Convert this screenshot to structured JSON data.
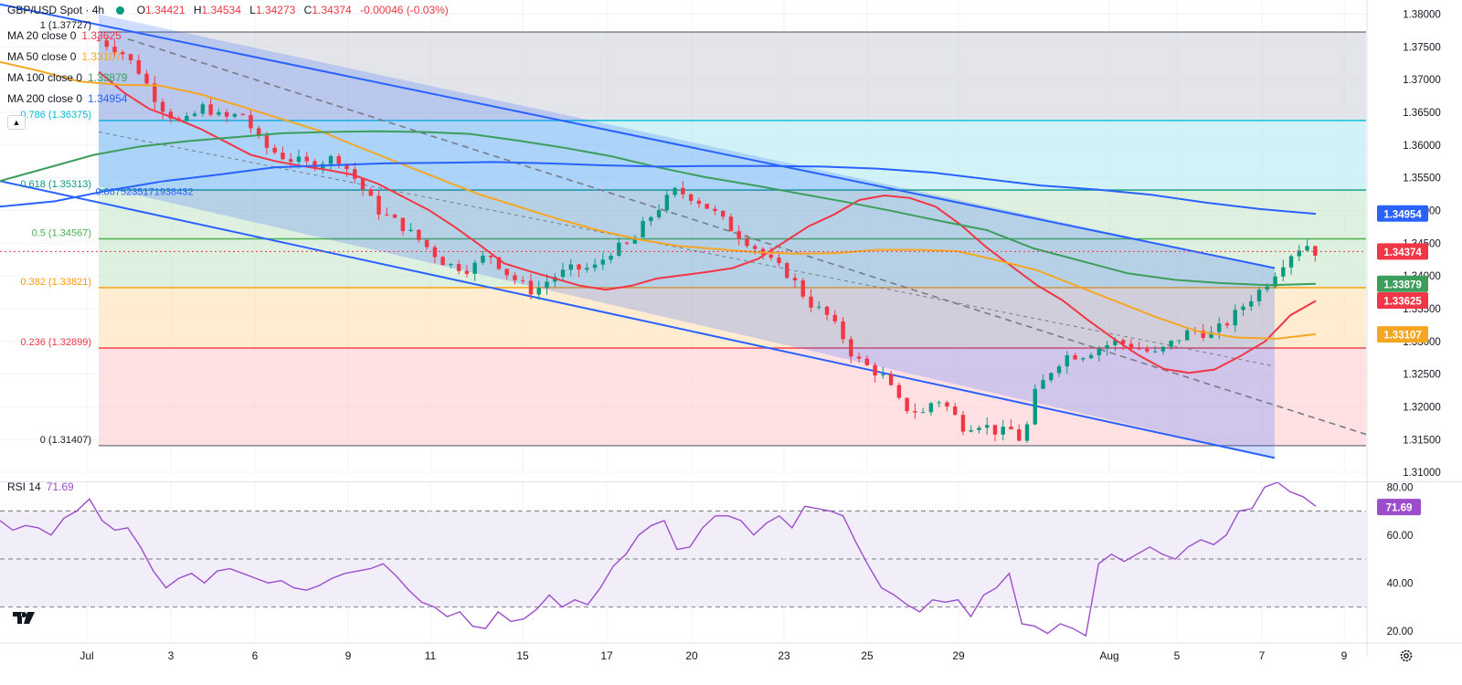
{
  "header": {
    "symbol": "GBP/USD Spot",
    "sep": "·",
    "interval": "4h",
    "open_label": "O",
    "open": "1.34421",
    "high_label": "H",
    "high": "1.34534",
    "low_label": "L",
    "low": "1.34273",
    "close_label": "C",
    "close": "1.34374",
    "change": "-0.00046 (-0.03%)"
  },
  "indicators": [
    {
      "label": "MA 20 close 0",
      "value": "1.33625",
      "color": "#f23645"
    },
    {
      "label": "MA 50 close 0",
      "value": "1.33107",
      "color": "#f5a623"
    },
    {
      "label": "MA 100 close 0",
      "value": "1.33879",
      "color": "#3d9e5c"
    },
    {
      "label": "MA 200 close 0",
      "value": "1.34954",
      "color": "#2962ff"
    }
  ],
  "fib_levels": [
    {
      "label": "1 (1.37727)",
      "price": 1.37727,
      "color": "#787b86"
    },
    {
      "label": "0.786 (1.36375)",
      "price": 1.36375,
      "color": "#00bcd4"
    },
    {
      "label": "0.618 (1.35313)",
      "price": 1.35313,
      "color": "#089981"
    },
    {
      "label": "0.5 (1.34567)",
      "price": 1.34567,
      "color": "#4caf50"
    },
    {
      "label": "0.382 (1.33821)",
      "price": 1.33821,
      "color": "#ff9800"
    },
    {
      "label": "0.236 (1.32899)",
      "price": 1.32899,
      "color": "#f23645"
    },
    {
      "label": "0 (1.31407)",
      "price": 1.31407,
      "color": "#787b86"
    }
  ],
  "channel_label": "0.8675235171938432",
  "price_badges": [
    {
      "text": "1.34954",
      "price": 1.34954,
      "color": "#2962ff"
    },
    {
      "text": "1.34374",
      "price": 1.34374,
      "color": "#f23645"
    },
    {
      "text": "1.33879",
      "price": 1.33879,
      "color": "#3d9e5c"
    },
    {
      "text": "1.33625",
      "price": 1.33625,
      "color": "#f23645"
    },
    {
      "text": "1.33107",
      "price": 1.33107,
      "color": "#f5a623"
    }
  ],
  "rsi": {
    "label": "RSI 14",
    "value": "71.69",
    "badge": "71.69",
    "color": "#9c4dcc"
  },
  "colors": {
    "up": "#089981",
    "down": "#f23645",
    "channel": "#2962ff"
  },
  "chart_data": {
    "type": "candlestick",
    "title": "GBP/USD Spot · 4h",
    "y_ticks": [
      "1.38000",
      "1.37500",
      "1.37000",
      "1.36500",
      "1.36000",
      "1.35500",
      "1.35000",
      "1.34500",
      "1.34000",
      "1.33500",
      "1.33000",
      "1.32500",
      "1.32000",
      "1.31500",
      "1.31000"
    ],
    "ylim": [
      1.3096,
      1.3816
    ],
    "x_ticks": [
      "Jul",
      "3",
      "6",
      "9",
      "11",
      "15",
      "17",
      "20",
      "23",
      "25",
      "29",
      "Aug",
      "5",
      "7",
      "9"
    ],
    "grid": true,
    "rsi_ticks": [
      "80.00",
      "60.00",
      "40.00",
      "20.00"
    ],
    "rsi_ylim": [
      15,
      82
    ],
    "rsi_bands": [
      70,
      50,
      30
    ],
    "series": [
      {
        "name": "MA 20 close 0",
        "values": [
          1.3712,
          1.368,
          1.3655,
          1.3641,
          1.3625,
          1.3605,
          1.3585,
          1.3575,
          1.3568,
          1.3562,
          1.3555,
          1.3541,
          1.3521,
          1.3501,
          1.3476,
          1.3448,
          1.3419,
          1.3407,
          1.3396,
          1.3385,
          1.3379,
          1.3385,
          1.3396,
          1.3401,
          1.3406,
          1.3412,
          1.3426,
          1.3451,
          1.3476,
          1.3494,
          1.3516,
          1.3523,
          1.3519,
          1.3506,
          1.3478,
          1.3444,
          1.3415,
          1.3386,
          1.3363,
          1.3333,
          1.3305,
          1.3279,
          1.3258,
          1.3252,
          1.3257,
          1.3277,
          1.33,
          1.334,
          1.3362
        ]
      },
      {
        "name": "MA 50 close 0",
        "values": [
          1.3727,
          1.3713,
          1.3697,
          1.3692,
          1.3691,
          1.3678,
          1.366,
          1.3641,
          1.3622,
          1.3597,
          1.3573,
          1.3549,
          1.3525,
          1.3506,
          1.3487,
          1.347,
          1.3456,
          1.3446,
          1.3441,
          1.3436,
          1.3434,
          1.3435,
          1.344,
          1.344,
          1.3438,
          1.3424,
          1.3409,
          1.3385,
          1.3361,
          1.3337,
          1.3316,
          1.3306,
          1.3304,
          1.3311
        ]
      },
      {
        "name": "MA 100 close 0",
        "values": [
          1.3545,
          1.3565,
          1.3585,
          1.3598,
          1.3606,
          1.3612,
          1.3618,
          1.362,
          1.3621,
          1.362,
          1.3617,
          1.3607,
          1.3596,
          1.3583,
          1.3566,
          1.3551,
          1.3539,
          1.3526,
          1.3513,
          1.3499,
          1.3484,
          1.347,
          1.3442,
          1.3423,
          1.3404,
          1.3394,
          1.3389,
          1.3386,
          1.3388
        ]
      },
      {
        "name": "MA 200 close 0",
        "values": [
          1.3506,
          1.3514,
          1.3531,
          1.3545,
          1.3555,
          1.3566,
          1.3569,
          1.3572,
          1.3573,
          1.3574,
          1.3572,
          1.3569,
          1.3567,
          1.3568,
          1.3568,
          1.3567,
          1.3564,
          1.3558,
          1.3548,
          1.3538,
          1.3532,
          1.3524,
          1.3512,
          1.3502,
          1.3495
        ]
      },
      {
        "name": "RSI 14",
        "values": [
          66,
          62,
          64,
          63,
          60,
          67,
          70,
          75,
          66,
          62,
          63,
          55,
          45,
          38,
          42,
          44,
          40,
          45,
          46,
          44,
          42,
          40,
          41,
          38,
          37,
          39,
          42,
          44,
          45,
          46,
          48,
          43,
          37,
          32,
          30,
          26,
          28,
          22,
          21,
          28,
          24,
          25,
          29,
          35,
          30,
          33,
          31,
          38,
          47,
          52,
          60,
          64,
          66,
          54,
          55,
          63,
          68,
          68,
          66,
          60,
          65,
          68,
          63,
          72,
          71,
          70,
          68,
          57,
          47,
          38,
          35,
          31,
          28,
          33,
          32,
          33,
          26,
          35,
          38,
          44,
          23,
          22,
          19,
          23,
          21,
          18,
          48,
          52,
          49,
          52,
          55,
          52,
          50,
          55,
          58,
          56,
          60,
          70,
          71,
          80,
          82,
          78,
          76,
          72
        ]
      }
    ]
  }
}
